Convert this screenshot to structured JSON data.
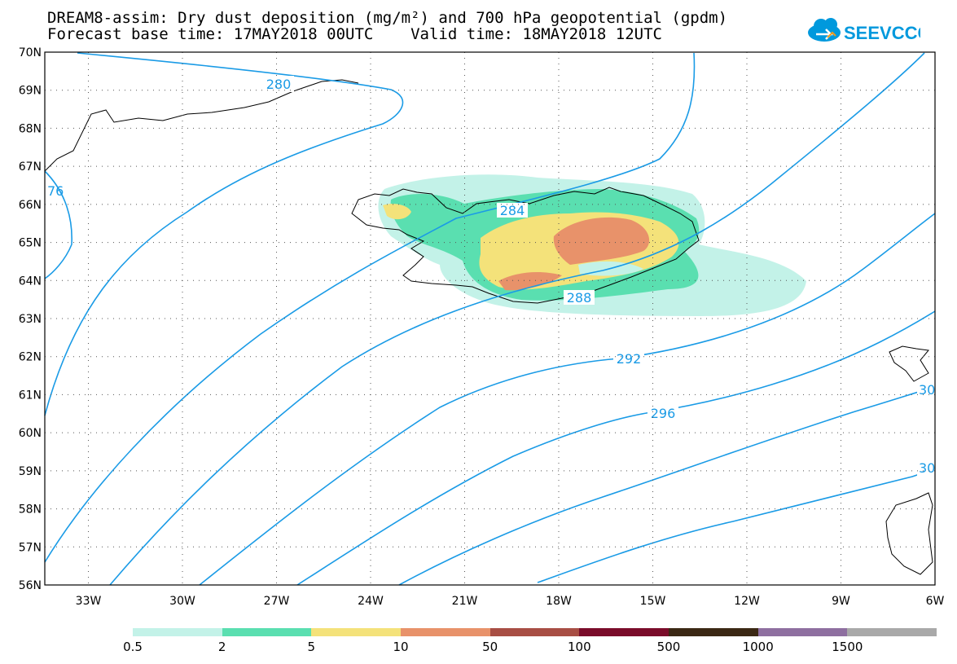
{
  "header": {
    "title_line1": "DREAM8-assim: Dry dust deposition (mg/m²) and 700 hPa geopotential (gpdm)",
    "title_line2": "Forecast base time: 17MAY2018 00UTC    Valid time: 18MAY2018 12UTC"
  },
  "logo": {
    "text": "SEEVCCC",
    "color": "#0099dd"
  },
  "map": {
    "lat_labels": [
      "70N",
      "69N",
      "68N",
      "67N",
      "66N",
      "65N",
      "64N",
      "63N",
      "62N",
      "61N",
      "60N",
      "59N",
      "58N",
      "57N",
      "56N"
    ],
    "lon_labels": [
      "33W",
      "30W",
      "27W",
      "24W",
      "21W",
      "18W",
      "15W",
      "12W",
      "9W",
      "6W"
    ],
    "contour_labels": [
      "280",
      "76",
      "284",
      "288",
      "292",
      "296",
      "30",
      "30"
    ],
    "contour_color": "#1a9be6"
  },
  "colorbar": {
    "colors": [
      "#c3f2e8",
      "#5adfb0",
      "#f4e27a",
      "#e8926a",
      "#a84e44",
      "#7a0c2a",
      "#3b2814",
      "#8e6fa0",
      "#a9a9a9"
    ],
    "labels": [
      "0.5",
      "2",
      "5",
      "10",
      "50",
      "100",
      "500",
      "1000",
      "1500"
    ]
  }
}
